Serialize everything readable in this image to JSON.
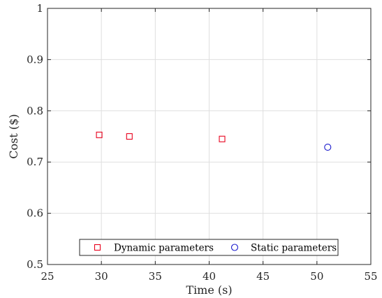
{
  "chart_data": {
    "type": "scatter",
    "xlabel": "Time (s)",
    "ylabel": "Cost ($)",
    "xlim": [
      25,
      55
    ],
    "ylim": [
      0.5,
      1
    ],
    "xticks": [
      "25",
      "30",
      "35",
      "40",
      "45",
      "50",
      "55"
    ],
    "yticks": [
      "0.5",
      "0.6",
      "0.7",
      "0.8",
      "0.9",
      "1"
    ],
    "grid": true,
    "legend_position": "bottom-center",
    "series": [
      {
        "name": "Dynamic parameters",
        "marker": "square",
        "color": "#e8001c",
        "points": [
          {
            "x": 29.8,
            "y": 0.753
          },
          {
            "x": 32.6,
            "y": 0.75
          },
          {
            "x": 41.2,
            "y": 0.745
          }
        ]
      },
      {
        "name": "Static parameters",
        "marker": "circle",
        "color": "#1a1acc",
        "points": [
          {
            "x": 51.0,
            "y": 0.729
          }
        ]
      }
    ]
  }
}
